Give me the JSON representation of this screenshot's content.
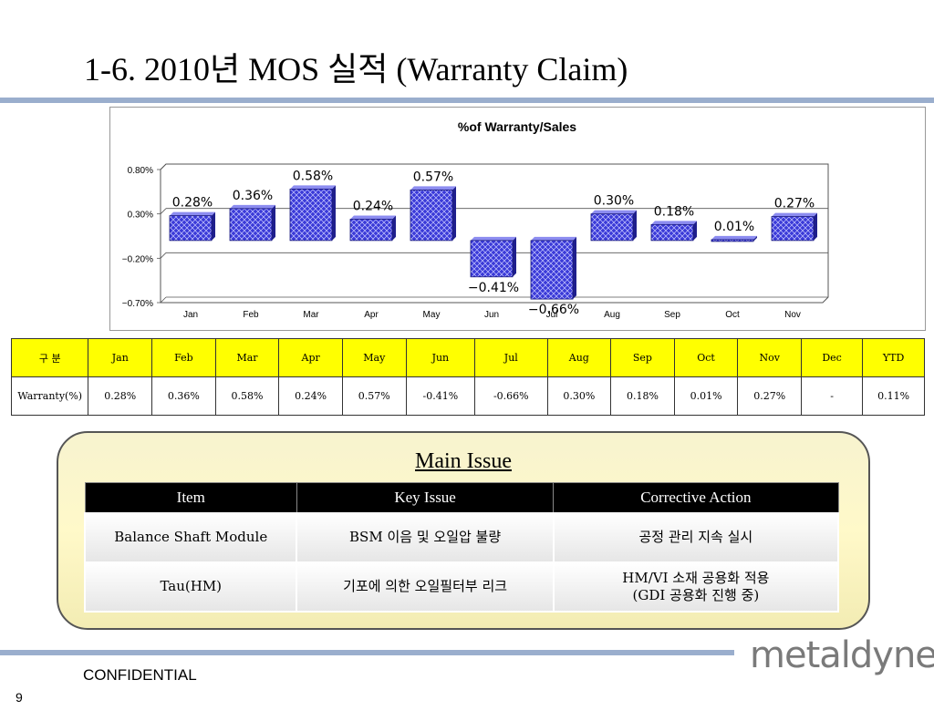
{
  "slide": {
    "title": "1-6. 2010년 MOS 실적 (Warranty Claim)",
    "confidential": "CONFIDENTIAL",
    "page_number": "9",
    "logo_text": "metaldyne"
  },
  "chart_data": {
    "type": "bar",
    "title": "%of Warranty/Sales",
    "categories": [
      "Jan",
      "Feb",
      "Mar",
      "Apr",
      "May",
      "Jun",
      "Jul",
      "Aug",
      "Sep",
      "Oct",
      "Nov"
    ],
    "values": [
      0.28,
      0.36,
      0.58,
      0.24,
      0.57,
      -0.41,
      -0.66,
      0.3,
      0.18,
      0.01,
      0.27
    ],
    "data_labels": [
      "0.28%",
      "0.36%",
      "0.58%",
      "0.24%",
      "0.57%",
      "-0.41%",
      "-0.66%",
      "0.30%",
      "0.18%",
      "0.01%",
      "0.27%"
    ],
    "yticks": [
      0.8,
      0.3,
      -0.2,
      -0.7
    ],
    "ytick_labels": [
      "0.80%",
      "0.30%",
      "-0.20%",
      "-0.70%"
    ],
    "ylim": [
      -0.7,
      0.8
    ],
    "grid": true,
    "colors": {
      "bar": "#3a3ad8",
      "bar_side": "#1f1f8c",
      "bar_top": "#8c8cf0"
    }
  },
  "data_table": {
    "header": [
      "구  분",
      "Jan",
      "Feb",
      "Mar",
      "Apr",
      "May",
      "Jun",
      "Jul",
      "Aug",
      "Sep",
      "Oct",
      "Nov",
      "Dec",
      "YTD"
    ],
    "row": [
      "Warranty(%)",
      "0.28%",
      "0.36%",
      "0.58%",
      "0.24%",
      "0.57%",
      "-0.41%",
      "-0.66%",
      "0.30%",
      "0.18%",
      "0.01%",
      "0.27%",
      "-",
      "0.11%"
    ]
  },
  "main_issue": {
    "title": "Main Issue",
    "columns": [
      "Item",
      "Key Issue",
      "Corrective Action"
    ],
    "rows": [
      {
        "item": "Balance Shaft Module",
        "key_issue": "BSM 이음 및 오일압 불량",
        "action_line1": "공정 관리 지속 실시",
        "action_line2": ""
      },
      {
        "item": "Tau(HM)",
        "key_issue": "기포에 의한 오일필터부 리크",
        "action_line1": "HM/VI 소재 공용화 적용",
        "action_line2": "(GDI 공용화 진행 중)"
      }
    ]
  }
}
